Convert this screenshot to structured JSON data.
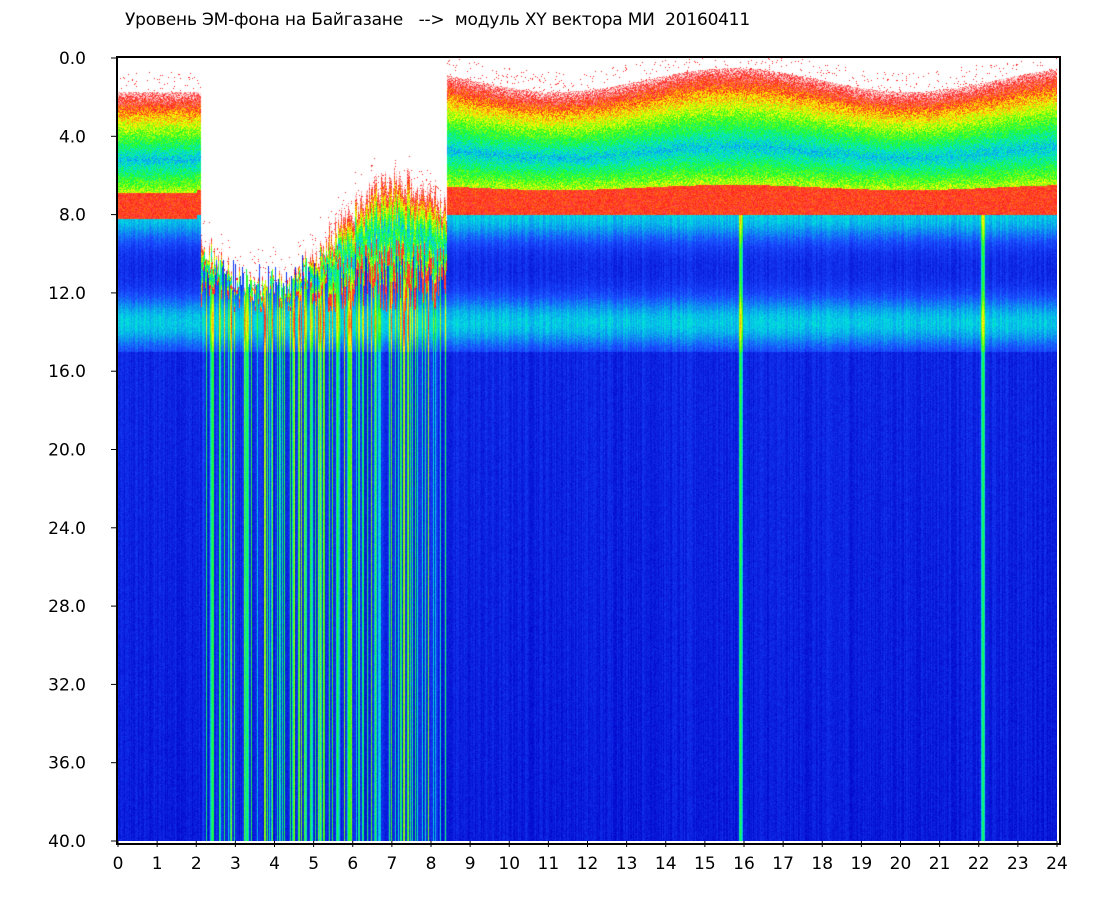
{
  "chart_data": {
    "type": "heatmap",
    "title": "Уровень ЭМ-фона на Байгазане   -->  модуль XY вектора МИ  20160411",
    "x_ticks": [
      "0",
      "1",
      "2",
      "3",
      "4",
      "5",
      "6",
      "7",
      "8",
      "9",
      "10",
      "11",
      "12",
      "13",
      "14",
      "15",
      "16",
      "17",
      "18",
      "19",
      "20",
      "21",
      "22",
      "23",
      "24"
    ],
    "y_ticks": [
      "0.0",
      "4.0",
      "8.0",
      "12.0",
      "16.0",
      "20.0",
      "24.0",
      "28.0",
      "32.0",
      "36.0",
      "40.0"
    ],
    "xlim": [
      0,
      24
    ],
    "ylim": [
      0,
      40
    ],
    "y_inverted": true,
    "colormap": [
      "#0000c8",
      "#1a4cff",
      "#00e0e0",
      "#22ff22",
      "#ffff00",
      "#ff2020",
      "#ffffff"
    ],
    "disturbed_interval_hours": [
      2.1,
      8.4
    ],
    "ridge_rows": [
      8.0,
      13.5
    ],
    "bright_vertical_lines_hours": [
      2.4,
      5.6,
      15.9,
      22.1
    ]
  }
}
